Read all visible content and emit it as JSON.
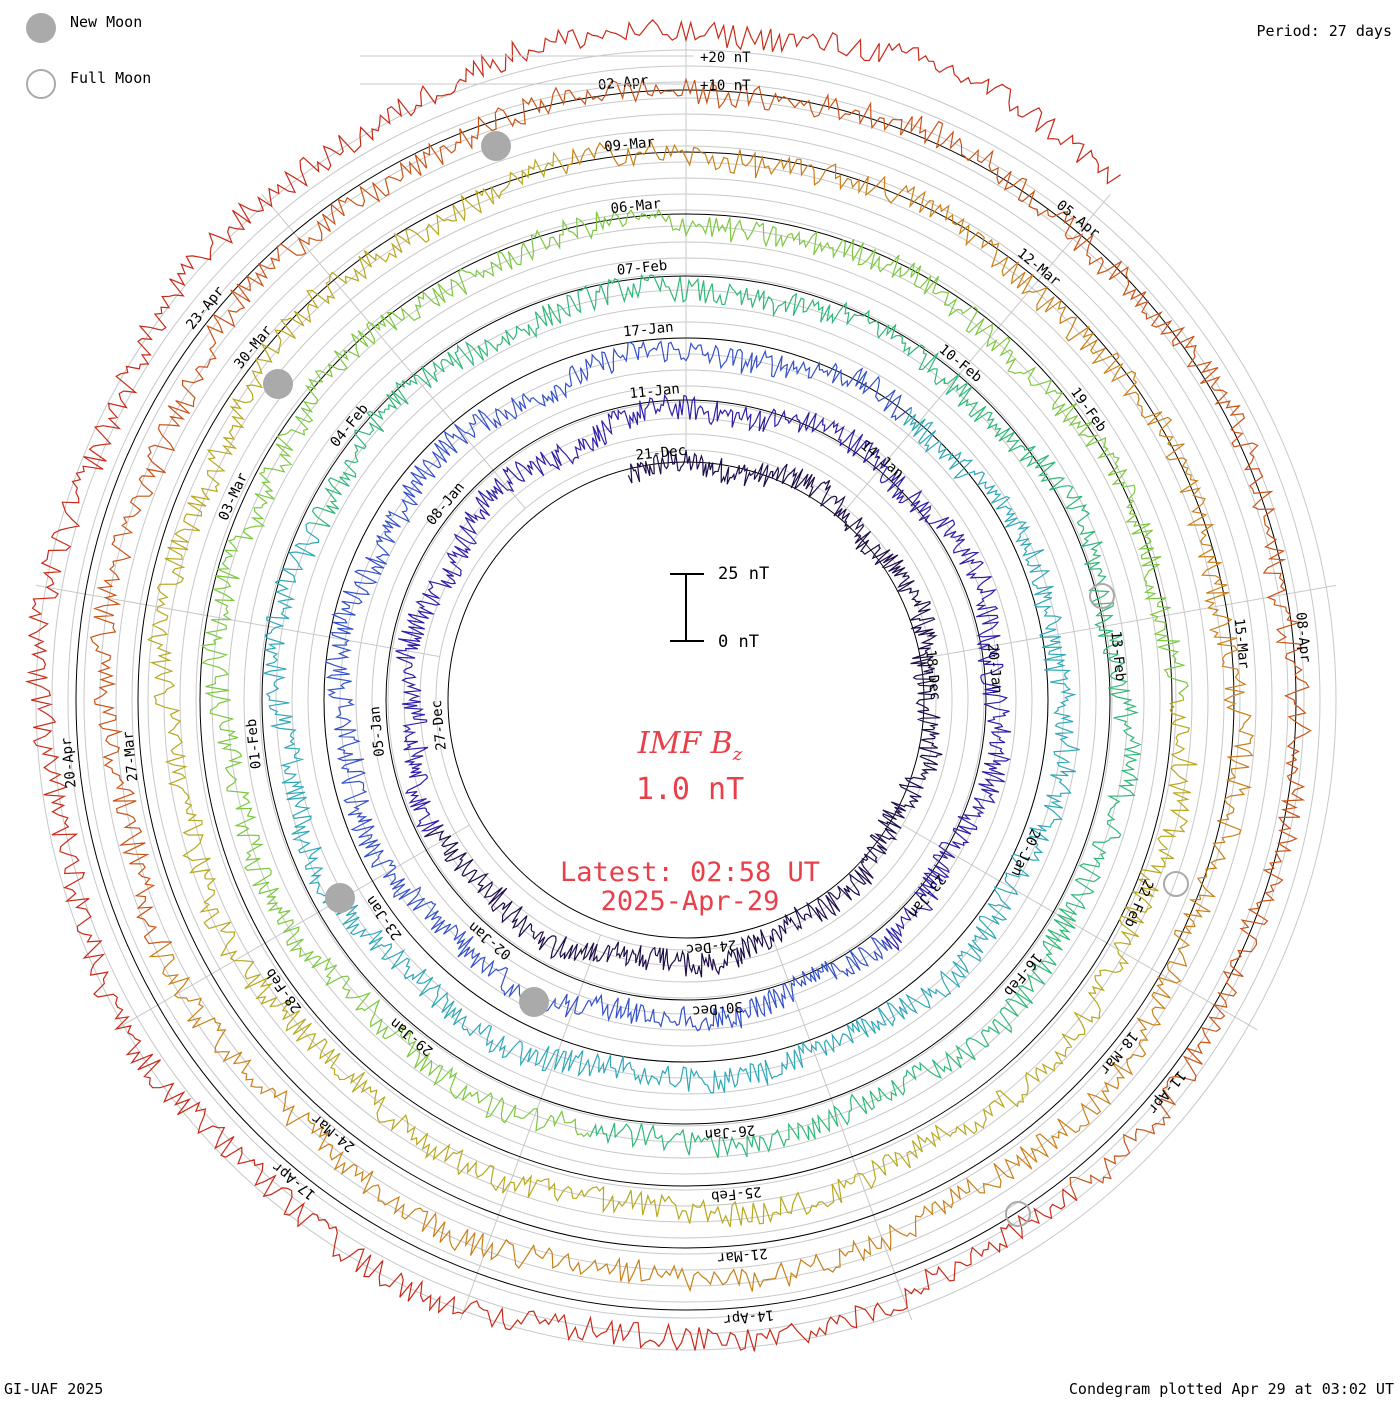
{
  "legend": {
    "new_moon_label": "New Moon",
    "full_moon_label": "Full Moon",
    "new_moon_color": "#aaaaaa",
    "full_moon_color": "#aaaaaa"
  },
  "period_label": "Period: 27 days",
  "footer": {
    "credit": "GI-UAF 2025",
    "plotted": "Condegram plotted Apr 29 at 03:02 UT"
  },
  "center": {
    "title_main": "IMF B",
    "title_sub": "z",
    "value": "1.0 nT",
    "latest_line1": "Latest: 02:58 UT",
    "latest_line2": "2025-Apr-29",
    "text_color": "#e8404a"
  },
  "scale_bar": {
    "top_label": "25 nT",
    "bottom_label": "0 nT"
  },
  "chart_data": {
    "type": "line",
    "chart_kind": "condegram spiral (polar time series)",
    "title": "IMF Bz",
    "period_days": 27,
    "reference_labels": [
      "+20 nT",
      "+10 nT"
    ],
    "latest_value_nT": 1.0,
    "latest_time": "02:58 UT",
    "latest_date": "2025-Apr-29",
    "rotations": [
      {
        "name": "rotation 1",
        "color": "#1f0d4a",
        "date_labels": [
          "21-Dec",
          "18-Dec",
          "24-Dec",
          "27-Dec"
        ]
      },
      {
        "name": "rotation 2",
        "color": "#2e1fa6",
        "date_labels": [
          "11-Jan",
          "14-Jan",
          "20-Jan",
          "23-Jan",
          "30-Dec",
          "02-Jan",
          "05-Jan",
          "08-Jan"
        ]
      },
      {
        "name": "rotation 3",
        "color": "#3551c9",
        "date_labels": [
          "17-Jan",
          "20-Jan",
          "23-Jan"
        ]
      },
      {
        "name": "rotation 4",
        "color": "#2fa8b8",
        "date_labels": [
          "07-Feb",
          "10-Feb",
          "13-Feb",
          "16-Feb",
          "26-Jan",
          "29-Jan",
          "01-Feb",
          "04-Feb"
        ]
      },
      {
        "name": "rotation 5",
        "color": "#30b878",
        "date_labels": [
          "06-Mar",
          "19-Feb",
          "22-Feb",
          "25-Feb",
          "28-Feb",
          "03-Mar"
        ]
      },
      {
        "name": "rotation 6",
        "color": "#7cc840",
        "date_labels": [
          "09-Mar",
          "12-Mar",
          "15-Mar",
          "18-Mar",
          "21-Mar",
          "24-Mar",
          "27-Mar",
          "30-Mar"
        ]
      },
      {
        "name": "rotation 7",
        "color": "#b8a820",
        "date_labels": [
          "02-Apr",
          "05-Apr",
          "08-Apr",
          "11-Apr",
          "14-Apr",
          "17-Apr",
          "20-Apr",
          "23-Apr"
        ]
      },
      {
        "name": "rotation 8",
        "color": "#c82a18",
        "date_labels": []
      }
    ],
    "color_sequence": [
      "#1f0d4a",
      "#2e1fa6",
      "#3551c9",
      "#2fa8b8",
      "#30b878",
      "#7cc840",
      "#b8a820",
      "#c9801a",
      "#c85418",
      "#c82a18"
    ],
    "new_moon_dates": [
      "29-Jan",
      "28-Feb",
      "29-Mar",
      "27-Apr"
    ],
    "full_moon_dates": [
      "13-Jan",
      "12-Feb",
      "14-Mar",
      "13-Apr"
    ],
    "scale": {
      "top_nT": 25,
      "bottom_nT": 0
    }
  }
}
